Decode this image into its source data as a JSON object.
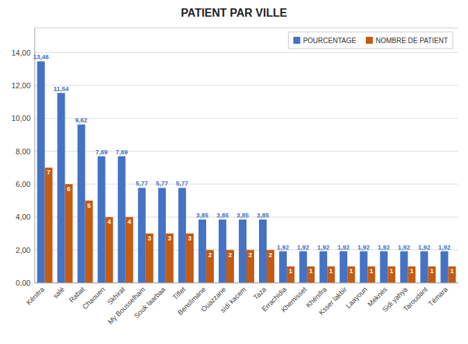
{
  "chart_data": {
    "type": "bar",
    "title": "PATIENT PAR VILLE",
    "categories": [
      "Kénitra",
      "salé",
      "Rabat",
      "Chaouen",
      "Skhirat",
      "My Bousselham",
      "Souk laarbaa",
      "Tiflet",
      "Benslimane",
      "Ouazzane",
      "sidi kacem",
      "Taza",
      "Errachidia",
      "Khemisset",
      "Khénifra",
      "Ksser lakbir",
      "Laayoun",
      "Meknès",
      "Sidi yahya",
      "Taroudant",
      "Témara"
    ],
    "series": [
      {
        "name": "POURCENTAGE",
        "color": "#4472C4",
        "values": [
          13.46,
          11.54,
          9.62,
          7.69,
          7.69,
          5.77,
          5.77,
          5.77,
          3.85,
          3.85,
          3.85,
          3.85,
          1.92,
          1.92,
          1.92,
          1.92,
          1.92,
          1.92,
          1.92,
          1.92,
          1.92
        ],
        "value_labels": [
          "13,46",
          "11,54",
          "9,62",
          "7,69",
          "7,69",
          "5,77",
          "5,77",
          "5,77",
          "3,85",
          "3,85",
          "3,85",
          "3,85",
          "1,92",
          "1,92",
          "1,92",
          "1,92",
          "1,92",
          "1,92",
          "1,92",
          "1,92",
          "1,92"
        ]
      },
      {
        "name": "NOMBRE DE PATIENT",
        "color": "#C55A11",
        "values": [
          7,
          6,
          5,
          4,
          4,
          3,
          3,
          3,
          2,
          2,
          2,
          2,
          1,
          1,
          1,
          1,
          1,
          1,
          1,
          1,
          1
        ]
      }
    ],
    "ylim": [
      0,
      15.5
    ],
    "yticks": [
      {
        "value": 0.0,
        "label": "0,00"
      },
      {
        "value": 2.0,
        "label": "2,00"
      },
      {
        "value": 4.0,
        "label": "4,00"
      },
      {
        "value": 6.0,
        "label": "6,00"
      },
      {
        "value": 8.0,
        "label": "8,00"
      },
      {
        "value": 10.0,
        "label": "10,00"
      },
      {
        "value": 12.0,
        "label": "12,00"
      },
      {
        "value": 14.0,
        "label": "14,00"
      }
    ],
    "grid": true,
    "legend": "upper right",
    "data_labels": true
  }
}
